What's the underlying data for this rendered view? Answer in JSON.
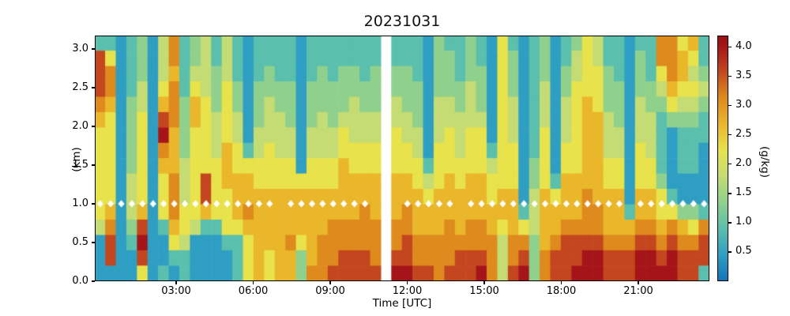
{
  "figure": {
    "background": "#ffffff"
  },
  "chart_data": {
    "type": "heatmap",
    "title": "20231031",
    "xlabel": "Time [UTC]",
    "ylabel": "(km)",
    "value_unit": "g/kg",
    "x_range_hours": [
      0,
      24
    ],
    "y_range_km": [
      0,
      3.17
    ],
    "n_time_cols": 58,
    "n_alt_rows": 16,
    "time_minutes_per_col": 24.8,
    "alt_km_per_row": 0.198,
    "value_encoding": "each string is one ~25-min time column, 16 chars top(3.17km)->bottom(0km); char 0-9 => value_gkg = digit*0.45; '-' => missing data (white gap ~10:50-11:20 UTC)",
    "columns_top_to_bottom": [
      "2888765555554111",
      "2577655555567881",
      "1111111111111111",
      "2222333334443211",
      "3334455555568985",
      "1111111111111111",
      "4445689765552112",
      "7767776667776521",
      "2222333344455422",
      "3345665555554111",
      "4444555558862111",
      "2233344455552111",
      "4445555666555211",
      "2223344556665222",
      "1111111256676555",
      "2223334455666666",
      "2233444555666655",
      "2223344455666666",
      "2223334455666766",
      "1111111115666533",
      "2223334455666667",
      "2233344455666777",
      "2223334455667778",
      "2233345566667788",
      "2233444556667788",
      "2223344556677788",
      "2233344556667778",
      "----------------",
      "2233445556667789",
      "2233344556677889",
      "2223334455666778",
      "1111111124566778",
      "3333444555666777",
      "2333445556667778",
      "2223344455666788",
      "3334445556667788",
      "2233345556667789",
      "1111111245566777",
      "5555555555665444",
      "2333444555666778",
      "1111111111125789",
      "2222222233444333",
      "3334445555666677",
      "1111111112566788",
      "2233444556667888",
      "3445555556667889",
      "5555666666777899",
      "4455566666677899",
      "2233344455666788",
      "2223334455666788",
      "1111111111126788",
      "2333444555667899",
      "2223344455667899",
      "7754322223556789",
      "7776531111257899",
      "5665432221136788",
      "6545432221135788",
      "2234322111127882"
    ],
    "missing_data_gap": {
      "time_utc": "10:50-11:20",
      "col_index": 27
    },
    "marker_line": {
      "altitude_km": 1.0,
      "marker": "white-diamond-dot",
      "color": "#ffffff",
      "missing_at_cols": [
        17,
        26,
        27,
        28,
        34,
        50
      ]
    },
    "xticks": {
      "hours": [
        3,
        6,
        9,
        12,
        15,
        18,
        21
      ],
      "labels": [
        "03:00",
        "06:00",
        "09:00",
        "12:00",
        "15:00",
        "18:00",
        "21:00"
      ]
    },
    "yticks": {
      "km": [
        0,
        0.5,
        1,
        1.5,
        2,
        2.5,
        3
      ],
      "labels": [
        "0.0",
        "0.5",
        "1.0",
        "1.5",
        "2.0",
        "2.5",
        "3.0"
      ]
    },
    "colorbar": {
      "label": "(g/kg)",
      "vmin": 0,
      "vmax": 4.2,
      "tick_values": [
        0.5,
        1,
        1.5,
        2,
        2.5,
        3,
        3.5,
        4
      ],
      "tick_labels": [
        "0.5",
        "1.0",
        "1.5",
        "2.0",
        "2.5",
        "3.0",
        "3.5",
        "4.0"
      ]
    },
    "colormap_stops": [
      [
        0.0,
        "#1273b8"
      ],
      [
        0.45,
        "#2f9ec3"
      ],
      [
        0.9,
        "#5abfad"
      ],
      [
        1.35,
        "#90d08d"
      ],
      [
        1.8,
        "#c4dc73"
      ],
      [
        2.25,
        "#e8e24b"
      ],
      [
        2.7,
        "#eab62a"
      ],
      [
        3.15,
        "#de8a1d"
      ],
      [
        3.6,
        "#c3461f"
      ],
      [
        4.05,
        "#a41419"
      ],
      [
        4.2,
        "#9b1015"
      ]
    ],
    "grid": false,
    "legend": "colorbar-right"
  }
}
